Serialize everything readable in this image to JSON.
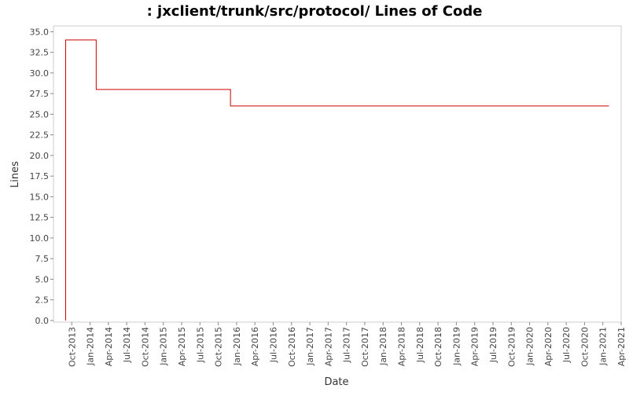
{
  "chart_data": {
    "type": "step",
    "title": ": jxclient/trunk/src/protocol/ Lines of Code",
    "x_label": "Date",
    "y_label": "Lines",
    "series": [
      {
        "name": "Lines",
        "color": "#cc0000",
        "x": [
          "Sep-2013",
          "Sep-2013",
          "Feb-2014",
          "Dec-2015",
          "Feb-2021"
        ],
        "values": [
          0,
          34,
          28,
          26,
          26
        ]
      }
    ],
    "xlim": [
      "Jul-2013",
      "Apr-2021"
    ],
    "xticks": [
      "Oct-2013",
      "Jan-2014",
      "Apr-2014",
      "Jul-2014",
      "Oct-2014",
      "Jan-2015",
      "Apr-2015",
      "Jul-2015",
      "Oct-2015",
      "Jan-2016",
      "Apr-2016",
      "Jul-2016",
      "Oct-2016",
      "Jan-2017",
      "Apr-2017",
      "Jul-2017",
      "Oct-2017",
      "Jan-2018",
      "Apr-2018",
      "Jul-2018",
      "Oct-2018",
      "Jan-2019",
      "Apr-2019",
      "Jul-2019",
      "Oct-2019",
      "Jan-2020",
      "Apr-2020",
      "Jul-2020",
      "Oct-2020",
      "Jan-2021",
      "Apr-2021"
    ],
    "ylim": [
      -0.2,
      35.7
    ],
    "yticks": [
      {
        "value": 0,
        "label": "0.0"
      },
      2.5,
      {
        "value": 5,
        "label": "5.0"
      },
      7.5,
      {
        "value": 10,
        "label": "10.0"
      },
      12.5,
      {
        "value": 15,
        "label": "15.0"
      },
      17.5,
      {
        "value": 20,
        "label": "20.0"
      },
      22.5,
      {
        "value": 25,
        "label": "25.0"
      },
      27.5,
      {
        "value": 30,
        "label": "30.0"
      },
      32.5,
      {
        "value": 35,
        "label": "35.0"
      }
    ]
  }
}
